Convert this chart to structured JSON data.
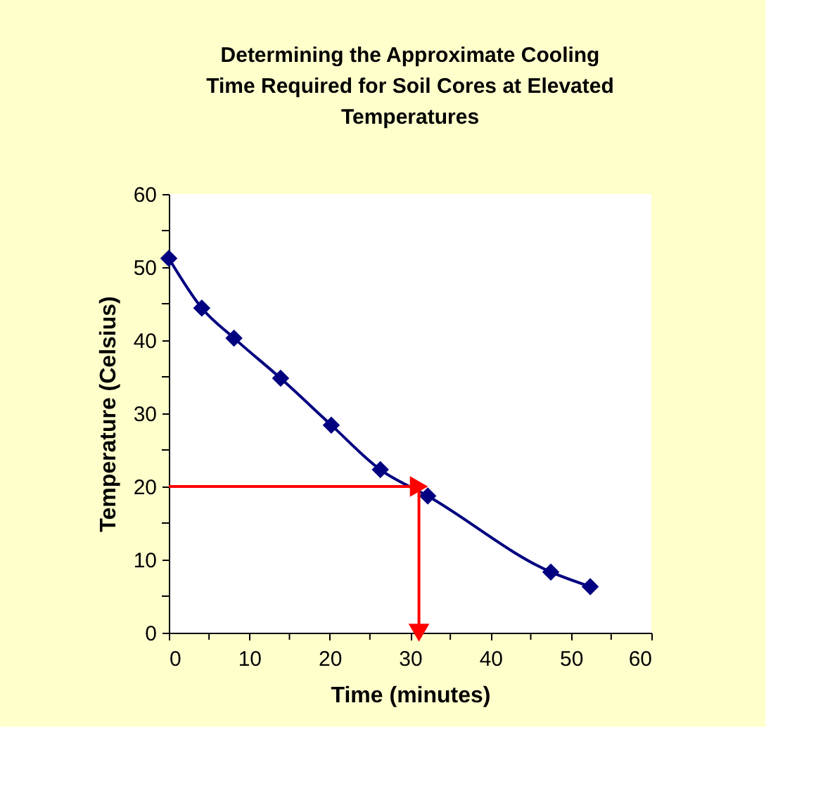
{
  "chart_data": {
    "type": "line",
    "title": [
      "Determining the Approximate Cooling",
      "Time Required for Soil Cores at Elevated",
      "Temperatures"
    ],
    "xlabel": "Time (minutes)",
    "ylabel": "Temperature (Celsius)",
    "xlim": [
      0,
      60
    ],
    "ylim": [
      0,
      60
    ],
    "xticks": [
      0,
      {
        "value": 5,
        "label": null
      },
      10,
      {
        "value": 15,
        "label": null
      },
      20,
      {
        "value": 25,
        "label": null
      },
      30,
      {
        "value": 35,
        "label": null
      },
      40,
      {
        "value": 45,
        "label": null
      },
      50,
      {
        "value": 55,
        "label": null
      },
      60
    ],
    "yticks": [
      0,
      {
        "value": 5,
        "label": null
      },
      10,
      {
        "value": 15,
        "label": null
      },
      20,
      {
        "value": 25,
        "label": null
      },
      30,
      {
        "value": 35,
        "label": null
      },
      40,
      {
        "value": 45,
        "label": null
      },
      50,
      {
        "value": 55,
        "label": null
      },
      60
    ],
    "grid": false,
    "series": [
      {
        "color": "#000080",
        "marker": "diamond",
        "x": [
          0,
          4.1,
          8.1,
          13.9,
          20.2,
          26.3,
          32.2,
          47.5,
          52.4
        ],
        "values": [
          51.2,
          44.4,
          40.3,
          34.8,
          28.4,
          22.3,
          18.7,
          8.3,
          6.3
        ]
      },
      {
        "color": "#ff0000",
        "x": [
          0,
          31.1,
          31.1
        ],
        "values": [
          20,
          20,
          0
        ]
      }
    ]
  }
}
